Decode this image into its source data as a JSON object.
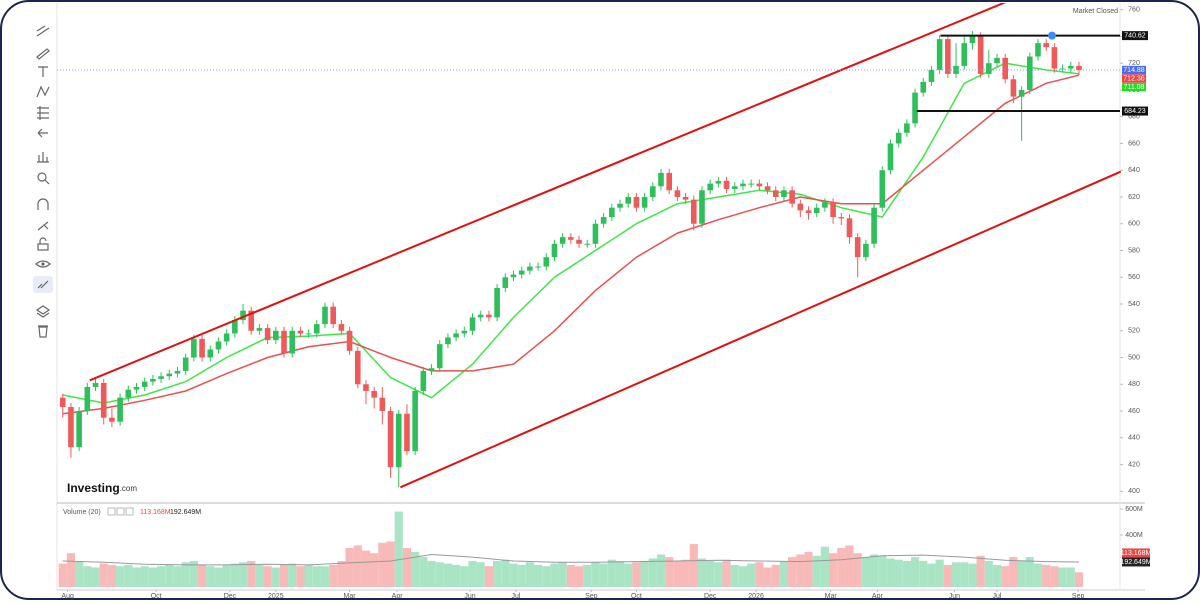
{
  "chart_data": {
    "type": "candlestick",
    "status": "Market Closed",
    "logo": {
      "name": "Investing",
      "suffix": ".com"
    },
    "up_color": "#2fbf5a",
    "down_color": "#ee5a5a",
    "x": [
      1,
      2,
      3,
      4,
      5,
      6,
      7,
      8,
      9,
      10,
      11,
      12,
      13,
      14,
      15,
      16,
      17,
      18,
      19,
      20,
      21,
      22,
      23,
      24,
      25,
      26,
      27,
      28,
      29,
      30,
      31,
      32,
      33,
      34,
      35,
      36,
      37,
      38,
      39,
      40,
      41,
      42,
      43,
      44,
      45,
      46,
      47,
      48,
      49,
      50,
      51,
      52,
      53,
      54,
      55,
      56,
      57,
      58,
      59,
      60,
      61,
      62,
      63,
      64,
      65,
      66,
      67,
      68,
      69,
      70,
      71,
      72,
      73,
      74,
      75,
      76,
      77,
      78,
      79,
      80,
      81,
      82,
      83,
      84,
      85,
      86,
      87,
      88,
      89,
      90,
      91,
      92,
      93,
      94,
      95,
      96,
      97,
      98,
      99,
      100,
      101,
      102,
      103,
      104,
      105,
      106,
      107,
      108,
      109,
      110,
      111,
      112,
      113,
      114,
      115,
      116,
      117,
      118,
      119,
      120,
      121,
      122,
      123,
      124,
      125
    ],
    "open": [
      470,
      463,
      433,
      460,
      478,
      481,
      455,
      452,
      470,
      476,
      478,
      482,
      484,
      486,
      488,
      490,
      500,
      514,
      500,
      506,
      512,
      518,
      528,
      535,
      520,
      522,
      513,
      520,
      503,
      520,
      518,
      518,
      525,
      538,
      525,
      520,
      505,
      480,
      475,
      470,
      460,
      418,
      458,
      430,
      475,
      490,
      492,
      510,
      515,
      518,
      520,
      530,
      532,
      530,
      552,
      560,
      562,
      565,
      568,
      568,
      575,
      585,
      590,
      588,
      585,
      585,
      600,
      605,
      612,
      615,
      620,
      612,
      620,
      628,
      638,
      625,
      620,
      618,
      600,
      625,
      630,
      632,
      626,
      628,
      630,
      630,
      628,
      625,
      620,
      625,
      615,
      610,
      608,
      612,
      616,
      605,
      604,
      590,
      575,
      585,
      612,
      640,
      660,
      668,
      675,
      698,
      706,
      715,
      738,
      712,
      718,
      735,
      740,
      712,
      720,
      724,
      708,
      695,
      700,
      725,
      735,
      732,
      716,
      716,
      718
    ],
    "high": [
      473,
      466,
      463,
      481,
      484,
      484,
      462,
      473,
      479,
      481,
      485,
      487,
      489,
      491,
      493,
      503,
      517,
      517,
      509,
      515,
      521,
      531,
      540,
      538,
      525,
      525,
      523,
      523,
      523,
      523,
      521,
      528,
      541,
      541,
      528,
      523,
      508,
      483,
      478,
      478,
      463,
      461,
      465,
      478,
      493,
      495,
      513,
      518,
      521,
      523,
      533,
      535,
      535,
      555,
      563,
      565,
      568,
      571,
      571,
      578,
      588,
      593,
      593,
      591,
      588,
      603,
      608,
      615,
      618,
      623,
      623,
      623,
      631,
      641,
      641,
      628,
      623,
      621,
      628,
      633,
      635,
      635,
      631,
      633,
      633,
      633,
      631,
      628,
      628,
      628,
      618,
      613,
      615,
      619,
      619,
      608,
      607,
      593,
      588,
      615,
      643,
      663,
      671,
      678,
      701,
      709,
      718,
      741,
      741,
      735,
      740,
      744,
      743,
      730,
      727,
      727,
      711,
      703,
      728,
      738,
      738,
      735,
      719,
      721,
      721
    ],
    "low": [
      455,
      425,
      430,
      457,
      475,
      450,
      448,
      449,
      467,
      473,
      475,
      479,
      481,
      483,
      485,
      487,
      497,
      497,
      497,
      503,
      509,
      515,
      525,
      517,
      517,
      510,
      510,
      500,
      500,
      515,
      515,
      515,
      522,
      522,
      517,
      502,
      477,
      465,
      462,
      450,
      410,
      403,
      427,
      427,
      472,
      487,
      489,
      507,
      512,
      515,
      517,
      527,
      527,
      527,
      549,
      557,
      559,
      562,
      565,
      565,
      572,
      582,
      585,
      582,
      582,
      582,
      597,
      602,
      609,
      612,
      609,
      609,
      617,
      625,
      622,
      617,
      615,
      595,
      597,
      622,
      627,
      623,
      623,
      625,
      627,
      625,
      622,
      617,
      617,
      612,
      605,
      603,
      605,
      609,
      600,
      599,
      585,
      560,
      572,
      582,
      609,
      637,
      657,
      665,
      672,
      695,
      703,
      712,
      709,
      709,
      715,
      730,
      709,
      709,
      717,
      705,
      690,
      662,
      697,
      722,
      729,
      713,
      713,
      713,
      711
    ],
    "close": [
      463,
      433,
      460,
      478,
      481,
      455,
      452,
      470,
      476,
      478,
      482,
      484,
      486,
      488,
      490,
      500,
      514,
      500,
      506,
      512,
      518,
      528,
      535,
      520,
      522,
      513,
      520,
      503,
      520,
      518,
      518,
      525,
      538,
      525,
      520,
      505,
      480,
      475,
      470,
      460,
      418,
      458,
      430,
      475,
      490,
      492,
      510,
      515,
      518,
      520,
      530,
      532,
      530,
      552,
      560,
      562,
      565,
      568,
      568,
      575,
      585,
      590,
      588,
      585,
      585,
      600,
      605,
      612,
      615,
      620,
      612,
      620,
      628,
      638,
      625,
      620,
      618,
      600,
      625,
      630,
      632,
      626,
      628,
      630,
      630,
      628,
      625,
      620,
      625,
      615,
      610,
      608,
      612,
      616,
      605,
      604,
      590,
      575,
      585,
      612,
      640,
      660,
      668,
      675,
      698,
      706,
      715,
      738,
      712,
      718,
      735,
      740,
      712,
      720,
      724,
      708,
      695,
      700,
      725,
      735,
      732,
      716,
      716,
      718,
      714.88
    ],
    "xlim": [
      0.3,
      127.2
    ],
    "xticks": [
      {
        "value": 1.6,
        "label": "Aug"
      },
      {
        "value": 12.4,
        "label": "Oct"
      },
      {
        "value": 21.4,
        "label": "Dec"
      },
      {
        "value": 27,
        "label": "2025"
      },
      {
        "value": 36,
        "label": "Mar"
      },
      {
        "value": 41.8,
        "label": "Apr"
      },
      {
        "value": 50.7,
        "label": "Jun"
      },
      {
        "value": 56.3,
        "label": "Jul"
      },
      {
        "value": 65.5,
        "label": "Sep"
      },
      {
        "value": 71,
        "label": "Oct"
      },
      {
        "value": 80,
        "label": "Dec"
      },
      {
        "value": 85.6,
        "label": "2026"
      },
      {
        "value": 94.7,
        "label": "Mar"
      },
      {
        "value": 100.4,
        "label": "Apr"
      },
      {
        "value": 109.8,
        "label": "Jun"
      },
      {
        "value": 115,
        "label": "Jul"
      },
      {
        "value": 124.9,
        "label": "Sep"
      }
    ],
    "ylim": [
      392,
      765
    ],
    "yticks": [
      400,
      420,
      440,
      460,
      480,
      500,
      520,
      540,
      560,
      580,
      600,
      620,
      640,
      660,
      680,
      700,
      720,
      740,
      760
    ],
    "lines": [
      {
        "color": "#3ee64a",
        "x": [
          1,
          6,
          11,
          16,
          21,
          26,
          31,
          36,
          41,
          46,
          51,
          56,
          61,
          66,
          71,
          76,
          81,
          86,
          91,
          96,
          101,
          106,
          111,
          116,
          121,
          125
        ],
        "values": [
          472,
          466,
          472,
          482,
          500,
          515,
          516,
          518,
          485,
          470,
          495,
          530,
          560,
          580,
          600,
          615,
          620,
          625,
          622,
          612,
          605,
          650,
          705,
          720,
          715,
          712
        ]
      },
      {
        "color": "#e85050",
        "x": [
          1,
          6,
          11,
          16,
          21,
          26,
          31,
          36,
          41,
          46,
          51,
          56,
          61,
          66,
          71,
          76,
          81,
          86,
          91,
          96,
          101,
          106,
          111,
          116,
          121,
          125
        ],
        "values": [
          458,
          462,
          468,
          475,
          488,
          500,
          508,
          512,
          500,
          490,
          490,
          495,
          520,
          550,
          575,
          593,
          603,
          612,
          620,
          615,
          615,
          640,
          665,
          690,
          705,
          711
        ]
      }
    ],
    "trendlines": [
      {
        "color": "#e01010",
        "x": [
          4.3,
          116.6
        ],
        "values": [
          483,
          767
        ]
      },
      {
        "color": "#e01010",
        "x": [
          42.2,
          130.1
        ],
        "values": [
          403,
          639
        ]
      }
    ],
    "levels": [
      {
        "value": 740.62,
        "start": 108.1
      },
      {
        "value": 684.23,
        "start": 105.2
      }
    ],
    "price_labels": [
      {
        "value": 714.88,
        "color": "#4a6cf0"
      },
      {
        "value": 712.36,
        "color": "#ee4444"
      },
      {
        "value": 711.08,
        "color": "#22dd22"
      }
    ],
    "volume": {
      "title": "Volume (20)",
      "up_color": "#a9e5c5",
      "down_color": "#f8b9b9",
      "values": [
        180,
        260,
        200,
        160,
        150,
        180,
        170,
        160,
        170,
        150,
        160,
        150,
        160,
        170,
        160,
        190,
        200,
        170,
        160,
        150,
        170,
        180,
        190,
        200,
        170,
        160,
        150,
        170,
        180,
        160,
        170,
        160,
        160,
        170,
        200,
        300,
        320,
        280,
        260,
        340,
        350,
        580,
        300,
        270,
        230,
        200,
        190,
        180,
        170,
        160,
        200,
        190,
        160,
        200,
        210,
        180,
        170,
        190,
        170,
        160,
        180,
        190,
        170,
        160,
        170,
        190,
        180,
        210,
        200,
        180,
        190,
        200,
        220,
        250,
        230,
        200,
        210,
        330,
        220,
        200,
        190,
        210,
        170,
        160,
        180,
        190,
        150,
        170,
        200,
        230,
        250,
        270,
        240,
        310,
        260,
        300,
        320,
        260,
        230,
        250,
        240,
        220,
        210,
        200,
        230,
        200,
        180,
        210,
        170,
        190,
        190,
        180,
        240,
        200,
        170,
        160,
        230,
        200,
        230,
        180,
        170,
        160,
        150,
        150,
        113.168
      ],
      "ylim": [
        0,
        623
      ],
      "yticks": [
        {
          "value": 400,
          "label": "400M"
        },
        {
          "value": 600,
          "label": "600M"
        }
      ],
      "ma": {
        "color": "#999999",
        "x": [
          1,
          6,
          11,
          16,
          21,
          26,
          31,
          36,
          41,
          46,
          51,
          56,
          61,
          66,
          71,
          76,
          81,
          86,
          91,
          96,
          101,
          106,
          111,
          116,
          121,
          125
        ],
        "values": [
          200,
          190,
          175,
          170,
          170,
          175,
          170,
          185,
          200,
          250,
          230,
          200,
          190,
          190,
          195,
          200,
          205,
          200,
          195,
          210,
          240,
          245,
          230,
          205,
          195,
          192.649
        ]
      },
      "labels": [
        {
          "value": 113.168,
          "label": "113.168M",
          "color": "#ee4444"
        },
        {
          "value": 192.649,
          "label": "192.649M",
          "color": "#222222"
        }
      ]
    }
  }
}
